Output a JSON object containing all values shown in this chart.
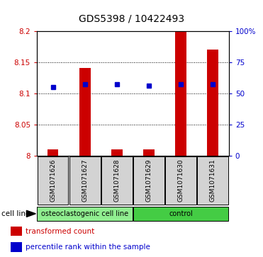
{
  "title": "GDS5398 / 10422493",
  "samples": [
    "GSM1071626",
    "GSM1071627",
    "GSM1071628",
    "GSM1071629",
    "GSM1071630",
    "GSM1071631"
  ],
  "transformed_counts": [
    8.01,
    8.14,
    8.01,
    8.01,
    8.2,
    8.17
  ],
  "percentile_ranks": [
    55,
    57,
    57,
    56,
    57,
    57
  ],
  "ylim_left": [
    8.0,
    8.2
  ],
  "ylim_right": [
    0,
    100
  ],
  "yticks_left": [
    8.0,
    8.05,
    8.1,
    8.15,
    8.2
  ],
  "yticks_right": [
    0,
    25,
    50,
    75,
    100
  ],
  "ytick_labels_left": [
    "8",
    "8.05",
    "8.1",
    "8.15",
    "8.2"
  ],
  "ytick_labels_right": [
    "0",
    "25",
    "50",
    "75",
    "100%"
  ],
  "bar_color": "#cc0000",
  "marker_color": "#0000cc",
  "bar_width": 0.35,
  "groups": [
    {
      "label": "osteoclastogenic cell line",
      "samples": [
        0,
        1,
        2
      ],
      "color": "#90ee90"
    },
    {
      "label": "control",
      "samples": [
        3,
        4,
        5
      ],
      "color": "#44cc44"
    }
  ],
  "cell_line_label": "cell line",
  "legend_items": [
    {
      "label": "transformed count",
      "color": "#cc0000"
    },
    {
      "label": "percentile rank within the sample",
      "color": "#0000cc"
    }
  ],
  "grid_color": "#000000",
  "background_color": "#ffffff"
}
